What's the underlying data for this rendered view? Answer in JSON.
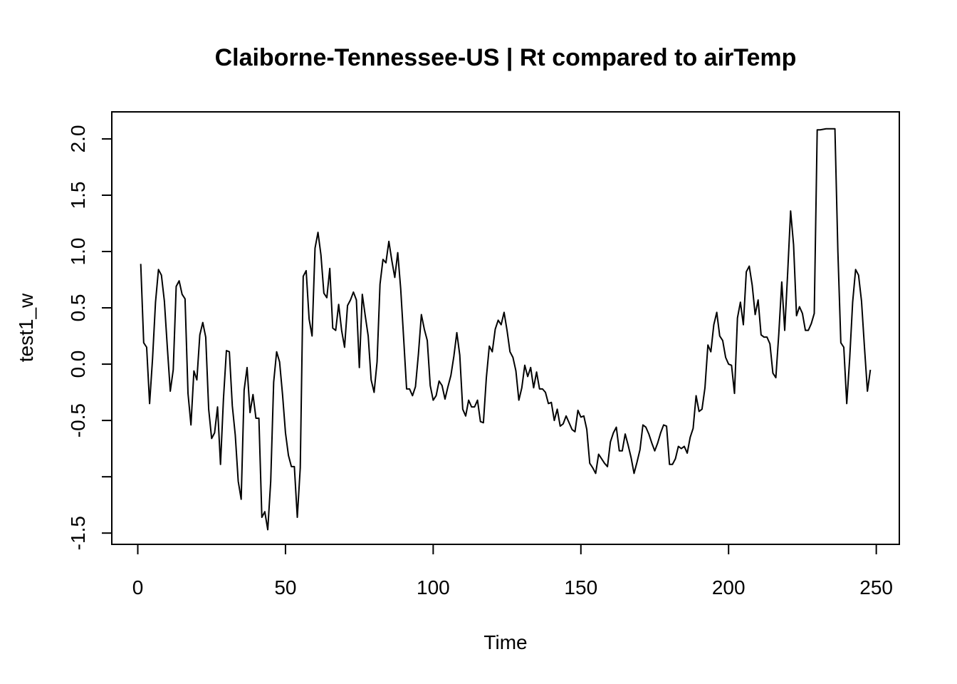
{
  "chart_data": {
    "type": "line",
    "title": "Claiborne-Tennessee-US | Rt compared to airTemp",
    "xlabel": "Time",
    "ylabel": "test1_w",
    "xlim": [
      -8.8,
      257.8
    ],
    "ylim": [
      -1.6,
      2.24
    ],
    "xticks": [
      0,
      50,
      100,
      150,
      200,
      250
    ],
    "xtick_labels": [
      "0",
      "50",
      "100",
      "150",
      "200",
      "250"
    ],
    "yticks": [
      -1.5,
      -1.0,
      -0.5,
      0.0,
      0.5,
      1.0,
      1.5,
      2.0
    ],
    "ytick_labels": [
      "-1.5",
      "",
      "-0.5",
      "0.0",
      "0.5",
      "1.0",
      "1.5",
      "2.0"
    ],
    "grid": false,
    "line_color": "#000000",
    "series": [
      {
        "x": [
          1,
          2,
          3,
          4,
          5,
          6,
          7,
          8,
          9,
          10,
          11,
          12,
          13,
          14,
          15,
          16,
          17,
          18,
          19,
          20,
          21,
          22,
          23,
          24,
          25,
          26,
          27,
          28,
          29,
          30,
          31,
          32,
          33,
          34,
          35,
          36,
          37,
          38,
          39,
          40,
          41,
          42,
          43,
          44,
          45,
          46,
          47,
          48,
          49,
          50,
          51,
          52,
          53,
          54,
          55,
          56,
          57,
          58,
          59,
          60,
          61,
          62,
          63,
          64,
          65,
          66,
          67,
          68,
          69,
          70,
          71,
          72,
          73,
          74,
          75,
          76,
          77,
          78,
          79,
          80,
          81,
          82,
          83,
          84,
          85,
          86,
          87,
          88,
          89,
          90,
          91,
          92,
          93,
          94,
          95,
          96,
          97,
          98,
          99,
          100,
          101,
          102,
          103,
          104,
          105,
          106,
          107,
          108,
          109,
          110,
          111,
          112,
          113,
          114,
          115,
          116,
          117,
          118,
          119,
          120,
          121,
          122,
          123,
          124,
          125,
          126,
          127,
          128,
          129,
          130,
          131,
          132,
          133,
          134,
          135,
          136,
          137,
          138,
          139,
          140,
          141,
          142,
          143,
          144,
          145,
          146,
          147,
          148,
          149,
          150,
          151,
          152,
          153,
          154,
          155,
          156,
          157,
          158,
          159,
          160,
          161,
          162,
          163,
          164,
          165,
          166,
          167,
          168,
          169,
          170,
          171,
          172,
          173,
          174,
          175,
          176,
          177,
          178,
          179,
          180,
          181,
          182,
          183,
          184,
          185,
          186,
          187,
          188,
          189,
          190,
          191,
          192,
          193,
          194,
          195,
          196,
          197,
          198,
          199,
          200,
          201,
          202,
          203,
          204,
          205,
          206,
          207,
          208,
          209,
          210,
          211,
          212,
          213,
          214,
          215,
          216,
          217,
          218,
          219,
          220,
          221,
          222,
          223,
          224,
          225,
          226,
          227,
          228,
          229,
          230,
          231,
          232,
          233,
          234,
          235,
          236,
          237,
          238,
          239,
          240,
          241,
          242,
          243,
          244,
          245,
          246,
          247,
          248
        ],
        "values": [
          0.89,
          0.19,
          0.15,
          -0.35,
          0.05,
          0.55,
          0.84,
          0.79,
          0.56,
          0.15,
          -0.24,
          -0.05,
          0.69,
          0.74,
          0.62,
          0.58,
          -0.26,
          -0.54,
          -0.06,
          -0.14,
          0.26,
          0.37,
          0.24,
          -0.4,
          -0.66,
          -0.61,
          -0.38,
          -0.89,
          -0.31,
          0.12,
          0.11,
          -0.37,
          -0.63,
          -1.04,
          -1.2,
          -0.23,
          -0.03,
          -0.43,
          -0.27,
          -0.48,
          -0.48,
          -1.36,
          -1.31,
          -1.47,
          -1.04,
          -0.16,
          0.11,
          0.02,
          -0.27,
          -0.61,
          -0.81,
          -0.91,
          -0.91,
          -1.36,
          -0.92,
          0.78,
          0.83,
          0.4,
          0.25,
          1.03,
          1.17,
          0.97,
          0.63,
          0.59,
          0.85,
          0.32,
          0.3,
          0.53,
          0.3,
          0.15,
          0.52,
          0.57,
          0.64,
          0.57,
          -0.03,
          0.62,
          0.43,
          0.25,
          -0.14,
          -0.25,
          0.02,
          0.71,
          0.93,
          0.9,
          1.09,
          0.92,
          0.77,
          0.99,
          0.67,
          0.23,
          -0.22,
          -0.22,
          -0.28,
          -0.2,
          0.09,
          0.44,
          0.31,
          0.21,
          -0.19,
          -0.32,
          -0.28,
          -0.15,
          -0.19,
          -0.31,
          -0.2,
          -0.1,
          0.07,
          0.28,
          0.08,
          -0.4,
          -0.46,
          -0.32,
          -0.38,
          -0.38,
          -0.32,
          -0.51,
          -0.52,
          -0.12,
          0.16,
          0.11,
          0.31,
          0.39,
          0.35,
          0.46,
          0.3,
          0.11,
          0.06,
          -0.06,
          -0.32,
          -0.21,
          -0.01,
          -0.11,
          -0.03,
          -0.21,
          -0.07,
          -0.22,
          -0.22,
          -0.25,
          -0.35,
          -0.34,
          -0.5,
          -0.4,
          -0.55,
          -0.53,
          -0.46,
          -0.52,
          -0.58,
          -0.6,
          -0.41,
          -0.47,
          -0.46,
          -0.58,
          -0.88,
          -0.92,
          -0.97,
          -0.8,
          -0.84,
          -0.88,
          -0.91,
          -0.69,
          -0.61,
          -0.56,
          -0.77,
          -0.77,
          -0.62,
          -0.72,
          -0.83,
          -0.97,
          -0.87,
          -0.76,
          -0.54,
          -0.56,
          -0.62,
          -0.7,
          -0.77,
          -0.7,
          -0.61,
          -0.54,
          -0.55,
          -0.89,
          -0.89,
          -0.84,
          -0.73,
          -0.75,
          -0.73,
          -0.79,
          -0.65,
          -0.57,
          -0.28,
          -0.42,
          -0.4,
          -0.21,
          0.17,
          0.11,
          0.35,
          0.46,
          0.25,
          0.21,
          0.06,
          0.0,
          -0.01,
          -0.26,
          0.41,
          0.55,
          0.35,
          0.82,
          0.87,
          0.7,
          0.44,
          0.57,
          0.26,
          0.24,
          0.24,
          0.18,
          -0.08,
          -0.12,
          0.27,
          0.73,
          0.3,
          0.81,
          1.36,
          1.06,
          0.43,
          0.51,
          0.45,
          0.3,
          0.3,
          0.36,
          0.45,
          2.08,
          2.08,
          2.085,
          2.09,
          2.09,
          2.09,
          2.09,
          1.0,
          0.19,
          0.15,
          -0.35,
          0.05,
          0.55,
          0.84,
          0.79,
          0.56,
          0.15,
          -0.24,
          -0.05
        ]
      }
    ]
  }
}
